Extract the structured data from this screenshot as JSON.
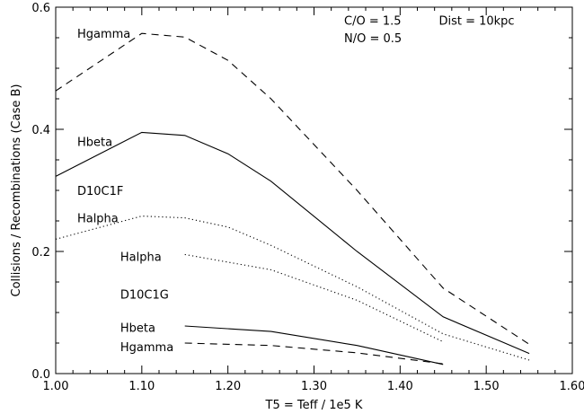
{
  "chart_data": {
    "type": "line",
    "title": "",
    "xlabel": "T5 = Teff / 1e5 K",
    "ylabel": "Collisions / Recombinations (Case B)",
    "xlim": [
      1.0,
      1.6
    ],
    "ylim": [
      0.0,
      0.6
    ],
    "x_ticks": [
      1.0,
      1.1,
      1.2,
      1.3,
      1.4,
      1.5,
      1.6
    ],
    "x_tick_labels": [
      "1.00",
      "1.10",
      "1.20",
      "1.30",
      "1.40",
      "1.50",
      "1.60"
    ],
    "y_ticks": [
      0.0,
      0.2,
      0.4,
      0.6
    ],
    "y_tick_labels": [
      "0.0",
      "0.2",
      "0.4",
      "0.6"
    ],
    "grid": false,
    "legend": "none",
    "annotations": [
      {
        "text": "C/O = 1.5",
        "x": 1.335,
        "y": 0.579
      },
      {
        "text": "Dist = 10kpc",
        "x": 1.445,
        "y": 0.579
      },
      {
        "text": "N/O = 0.5",
        "x": 1.335,
        "y": 0.55
      },
      {
        "text": "D10C1F",
        "x": 1.025,
        "y": 0.3
      },
      {
        "text": "D10C1G",
        "x": 1.075,
        "y": 0.13
      }
    ],
    "series": [
      {
        "name": "Hgamma",
        "group": "D10C1F",
        "style": "dashed",
        "x": [
          1.0,
          1.1,
          1.15,
          1.2,
          1.25,
          1.35,
          1.45,
          1.55
        ],
        "y": [
          0.463,
          0.557,
          0.551,
          0.513,
          0.45,
          0.3,
          0.14,
          0.048
        ],
        "label_x": 1.025,
        "label_y": 0.557
      },
      {
        "name": "Hbeta",
        "group": "D10C1F",
        "style": "solid",
        "x": [
          1.0,
          1.1,
          1.15,
          1.2,
          1.25,
          1.35,
          1.45,
          1.55
        ],
        "y": [
          0.323,
          0.395,
          0.39,
          0.36,
          0.315,
          0.2,
          0.093,
          0.033
        ],
        "label_x": 1.025,
        "label_y": 0.38
      },
      {
        "name": "Halpha",
        "group": "D10C1F",
        "style": "dotted",
        "x": [
          1.0,
          1.1,
          1.15,
          1.2,
          1.25,
          1.35,
          1.45,
          1.55
        ],
        "y": [
          0.22,
          0.258,
          0.255,
          0.24,
          0.21,
          0.142,
          0.065,
          0.022
        ],
        "label_x": 1.025,
        "label_y": 0.255
      },
      {
        "name": "Halpha",
        "group": "D10C1G",
        "style": "dotted",
        "x": [
          1.15,
          1.25,
          1.35,
          1.45
        ],
        "y": [
          0.195,
          0.17,
          0.12,
          0.052
        ],
        "label_x": 1.075,
        "label_y": 0.192
      },
      {
        "name": "Hbeta",
        "group": "D10C1G",
        "style": "solid",
        "x": [
          1.15,
          1.25,
          1.35,
          1.45
        ],
        "y": [
          0.078,
          0.069,
          0.046,
          0.015
        ],
        "label_x": 1.075,
        "label_y": 0.076
      },
      {
        "name": "Hgamma",
        "group": "D10C1G",
        "style": "dashed",
        "x": [
          1.15,
          1.25,
          1.35,
          1.45
        ],
        "y": [
          0.05,
          0.046,
          0.034,
          0.016
        ],
        "label_x": 1.075,
        "label_y": 0.044
      }
    ]
  }
}
